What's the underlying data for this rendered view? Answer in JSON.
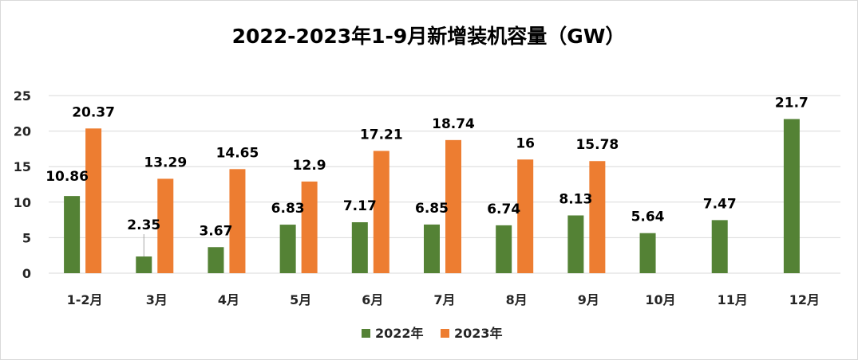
{
  "chart_data": {
    "type": "bar",
    "title": "2022-2023年1-9月新增装机容量（GW）",
    "categories": [
      "1-2月",
      "3月",
      "4月",
      "5月",
      "6月",
      "7月",
      "8月",
      "9月",
      "10月",
      "11月",
      "12月"
    ],
    "series": [
      {
        "name": "2022年",
        "color": "#548235",
        "values": [
          10.86,
          2.35,
          3.67,
          6.83,
          7.17,
          6.85,
          6.74,
          8.13,
          5.64,
          7.47,
          21.7
        ],
        "labels": [
          "10.86",
          "2.35",
          "3.67",
          "6.83",
          "7.17",
          "6.85",
          "6.74",
          "8.13",
          "5.64",
          "7.47",
          "21.7"
        ]
      },
      {
        "name": "2023年",
        "color": "#ed7d31",
        "values": [
          20.37,
          13.29,
          14.65,
          12.9,
          17.21,
          18.74,
          16,
          15.78,
          null,
          null,
          null
        ],
        "labels": [
          "20.37",
          "13.29",
          "14.65",
          "12.9",
          "17.21",
          "18.74",
          "16",
          "15.78",
          "",
          "",
          ""
        ]
      }
    ],
    "ylim": [
      0,
      25
    ],
    "yticks": [
      0,
      5,
      10,
      15,
      20,
      25
    ],
    "ytick_labels": [
      "0",
      "5",
      "10",
      "15",
      "20",
      "25"
    ],
    "grid": true,
    "gridline_color": "#d9d9d9",
    "legend_position": "bottom",
    "xlabel": "",
    "ylabel": ""
  }
}
